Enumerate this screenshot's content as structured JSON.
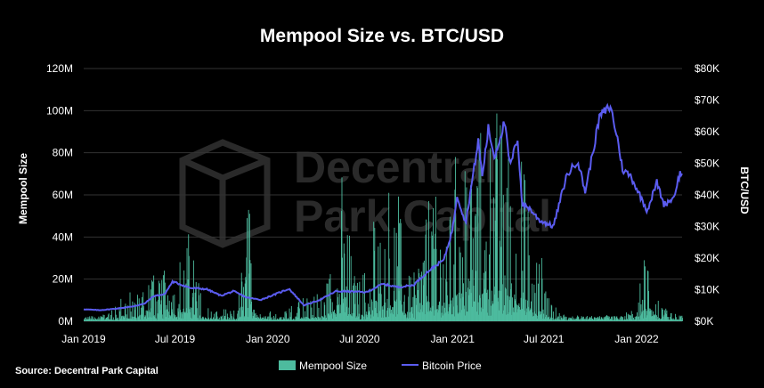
{
  "chart_data": {
    "type": "bar+line",
    "title": "Mempool Size vs. BTC/USD",
    "source": "Source: Decentral Park Capital",
    "watermark": [
      "Decentral",
      "Park Capital"
    ],
    "colors": {
      "bars": "#4dbb9e",
      "line": "#5b5cf0",
      "grid": "#333333",
      "background": "#000000"
    },
    "x_ticks": [
      "Jan 2019",
      "Jul 2019",
      "Jan 2020",
      "Jul 2020",
      "Jan 2021",
      "Jul 2021",
      "Jan 2022"
    ],
    "y_left": {
      "label": "Mempool Size",
      "ticks": [
        "0M",
        "20M",
        "40M",
        "60M",
        "80M",
        "100M",
        "120M"
      ],
      "range": [
        0,
        120
      ]
    },
    "y_right": {
      "label": "BTC/USD",
      "ticks": [
        "$0K",
        "$10K",
        "$20K",
        "$30K",
        "$40K",
        "$50K",
        "$60K",
        "$70K",
        "$80K"
      ],
      "range": [
        0,
        80
      ]
    },
    "legend": [
      "Mempool Size",
      "Bitcoin Price"
    ],
    "series": [
      {
        "name": "Mempool Size",
        "kind": "bar",
        "unit": "M",
        "points": [
          [
            "2019-01-01",
            3
          ],
          [
            "2019-02-01",
            4
          ],
          [
            "2019-03-01",
            6
          ],
          [
            "2019-03-20",
            16
          ],
          [
            "2019-04-15",
            12
          ],
          [
            "2019-05-01",
            25
          ],
          [
            "2019-05-10",
            43
          ],
          [
            "2019-05-20",
            22
          ],
          [
            "2019-06-01",
            20
          ],
          [
            "2019-06-10",
            30
          ],
          [
            "2019-06-20",
            42
          ],
          [
            "2019-07-01",
            20
          ],
          [
            "2019-07-10",
            30
          ],
          [
            "2019-07-20",
            40
          ],
          [
            "2019-08-01",
            43
          ],
          [
            "2019-08-15",
            22
          ],
          [
            "2019-09-01",
            8
          ],
          [
            "2019-10-01",
            6
          ],
          [
            "2019-11-01",
            5
          ],
          [
            "2019-11-20",
            64
          ],
          [
            "2019-12-15",
            12
          ],
          [
            "2020-01-15",
            5
          ],
          [
            "2020-02-15",
            8
          ],
          [
            "2020-03-15",
            12
          ],
          [
            "2020-04-15",
            14
          ],
          [
            "2020-05-10",
            30
          ],
          [
            "2020-05-20",
            52
          ],
          [
            "2020-06-01",
            87
          ],
          [
            "2020-06-15",
            24
          ],
          [
            "2020-07-01",
            20
          ],
          [
            "2020-07-15",
            28
          ],
          [
            "2020-08-01",
            71
          ],
          [
            "2020-08-10",
            40
          ],
          [
            "2020-08-20",
            60
          ],
          [
            "2020-09-01",
            66
          ],
          [
            "2020-09-15",
            62
          ],
          [
            "2020-10-01",
            25
          ],
          [
            "2020-10-15",
            30
          ],
          [
            "2020-11-01",
            45
          ],
          [
            "2020-11-20",
            70
          ],
          [
            "2020-12-01",
            60
          ],
          [
            "2020-12-20",
            50
          ],
          [
            "2021-01-01",
            70
          ],
          [
            "2021-01-10",
            90
          ],
          [
            "2021-01-20",
            80
          ],
          [
            "2021-02-01",
            92
          ],
          [
            "2021-02-15",
            95
          ],
          [
            "2021-03-01",
            90
          ],
          [
            "2021-03-15",
            85
          ],
          [
            "2021-04-01",
            108
          ],
          [
            "2021-04-15",
            98
          ],
          [
            "2021-05-01",
            80
          ],
          [
            "2021-05-10",
            70
          ],
          [
            "2021-05-20",
            80
          ],
          [
            "2021-06-01",
            50
          ],
          [
            "2021-06-10",
            32
          ],
          [
            "2021-06-20",
            28
          ],
          [
            "2021-07-01",
            36
          ],
          [
            "2021-07-15",
            10
          ],
          [
            "2021-08-01",
            5
          ],
          [
            "2021-09-01",
            3
          ],
          [
            "2021-10-01",
            2
          ],
          [
            "2021-11-01",
            3
          ],
          [
            "2021-12-01",
            4
          ],
          [
            "2022-01-01",
            6
          ],
          [
            "2022-01-20",
            44
          ],
          [
            "2022-02-15",
            8
          ],
          [
            "2022-03-15",
            4
          ]
        ]
      },
      {
        "name": "Bitcoin Price",
        "kind": "line",
        "unit": "K",
        "points": [
          [
            "2019-01-01",
            3.8
          ],
          [
            "2019-02-01",
            3.5
          ],
          [
            "2019-03-01",
            3.9
          ],
          [
            "2019-04-01",
            4.5
          ],
          [
            "2019-05-01",
            5.5
          ],
          [
            "2019-05-20",
            8.0
          ],
          [
            "2019-06-10",
            8.5
          ],
          [
            "2019-06-26",
            12.5
          ],
          [
            "2019-07-10",
            11.8
          ],
          [
            "2019-08-01",
            10.5
          ],
          [
            "2019-09-01",
            10.2
          ],
          [
            "2019-09-30",
            8.1
          ],
          [
            "2019-10-25",
            9.5
          ],
          [
            "2019-11-20",
            7.5
          ],
          [
            "2019-12-18",
            6.8
          ],
          [
            "2020-01-15",
            8.5
          ],
          [
            "2020-02-12",
            10.3
          ],
          [
            "2020-03-13",
            5.0
          ],
          [
            "2020-04-15",
            6.9
          ],
          [
            "2020-05-15",
            9.5
          ],
          [
            "2020-06-15",
            9.4
          ],
          [
            "2020-07-15",
            9.2
          ],
          [
            "2020-08-15",
            11.8
          ],
          [
            "2020-09-15",
            10.8
          ],
          [
            "2020-10-15",
            11.4
          ],
          [
            "2020-11-15",
            16.0
          ],
          [
            "2020-12-15",
            19.5
          ],
          [
            "2021-01-01",
            29.0
          ],
          [
            "2021-01-10",
            40.0
          ],
          [
            "2021-01-27",
            31.0
          ],
          [
            "2021-02-21",
            57.0
          ],
          [
            "2021-03-01",
            46.0
          ],
          [
            "2021-03-13",
            61.0
          ],
          [
            "2021-03-25",
            52.0
          ],
          [
            "2021-04-14",
            63.0
          ],
          [
            "2021-04-25",
            49.0
          ],
          [
            "2021-05-10",
            58.0
          ],
          [
            "2021-05-19",
            37.0
          ],
          [
            "2021-06-01",
            36.0
          ],
          [
            "2021-06-22",
            32.0
          ],
          [
            "2021-07-20",
            30.0
          ],
          [
            "2021-08-15",
            46.0
          ],
          [
            "2021-09-06",
            51.0
          ],
          [
            "2021-09-21",
            41.0
          ],
          [
            "2021-10-20",
            65.0
          ],
          [
            "2021-11-10",
            68.0
          ],
          [
            "2021-11-25",
            57.0
          ],
          [
            "2021-12-04",
            48.0
          ],
          [
            "2021-12-20",
            46.0
          ],
          [
            "2022-01-22",
            35.0
          ],
          [
            "2022-02-10",
            44.0
          ],
          [
            "2022-02-24",
            37.0
          ],
          [
            "2022-03-15",
            39.0
          ],
          [
            "2022-03-28",
            47.0
          ],
          [
            "2022-04-01",
            46.0
          ]
        ]
      }
    ]
  }
}
